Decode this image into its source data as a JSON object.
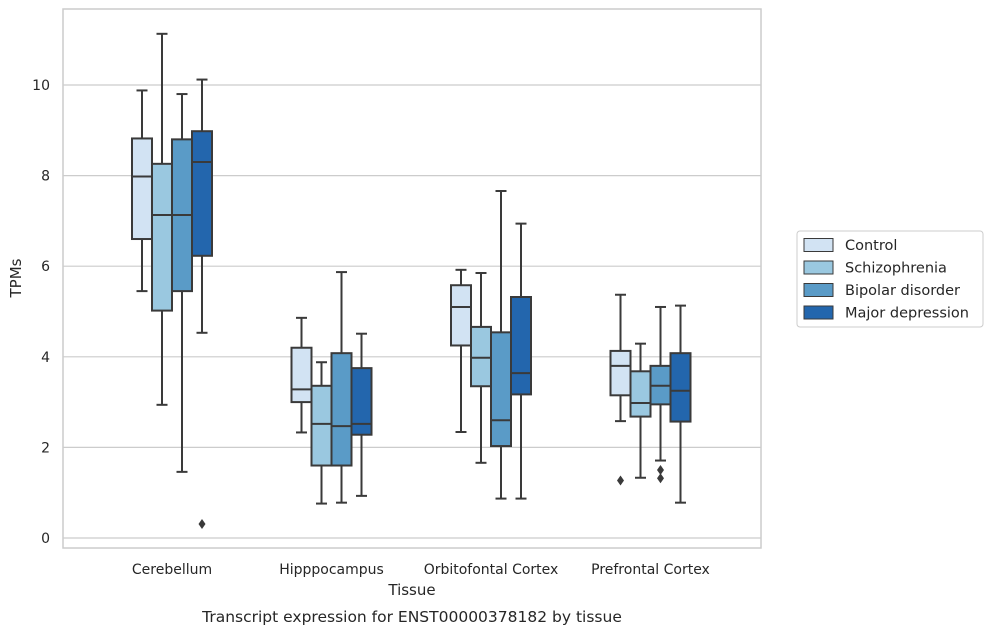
{
  "chart_data": {
    "type": "box",
    "xlabel": "Tissue",
    "ylabel": "TPMs",
    "caption": "Transcript expression for ENST00000378182 by tissue",
    "ylim": [
      -0.2,
      11.6
    ],
    "yticks": [
      0,
      2,
      4,
      6,
      8,
      10
    ],
    "grid": "horizontal",
    "legend_position": "right",
    "categories": [
      "Cerebellum",
      "Hipppocampus",
      "Orbitofontal Cortex",
      "Prefrontal Cortex"
    ],
    "series": [
      {
        "name": "Control",
        "color": "#d2e3f3",
        "boxes": [
          {
            "whislo": 5.45,
            "q1": 6.6,
            "med": 7.98,
            "q3": 8.82,
            "whishi": 9.88,
            "fliers": []
          },
          {
            "whislo": 2.33,
            "q1": 3.0,
            "med": 3.28,
            "q3": 4.2,
            "whishi": 4.86,
            "fliers": []
          },
          {
            "whislo": 2.34,
            "q1": 4.25,
            "med": 5.1,
            "q3": 5.58,
            "whishi": 5.92,
            "fliers": []
          },
          {
            "whislo": 2.58,
            "q1": 3.15,
            "med": 3.8,
            "q3": 4.13,
            "whishi": 5.37,
            "fliers": [
              1.27
            ]
          }
        ]
      },
      {
        "name": "Schizophrenia",
        "color": "#9ac8e0",
        "boxes": [
          {
            "whislo": 2.94,
            "q1": 5.02,
            "med": 7.13,
            "q3": 8.26,
            "whishi": 11.13,
            "fliers": []
          },
          {
            "whislo": 0.76,
            "q1": 1.6,
            "med": 2.52,
            "q3": 3.36,
            "whishi": 3.88,
            "fliers": []
          },
          {
            "whislo": 1.66,
            "q1": 3.35,
            "med": 3.98,
            "q3": 4.66,
            "whishi": 5.85,
            "fliers": []
          },
          {
            "whislo": 1.33,
            "q1": 2.68,
            "med": 2.98,
            "q3": 3.68,
            "whishi": 4.29,
            "fliers": []
          }
        ]
      },
      {
        "name": "Bipolar disorder",
        "color": "#5a9bc7",
        "boxes": [
          {
            "whislo": 1.46,
            "q1": 5.45,
            "med": 7.13,
            "q3": 8.8,
            "whishi": 9.8,
            "fliers": []
          },
          {
            "whislo": 0.78,
            "q1": 1.6,
            "med": 2.47,
            "q3": 4.08,
            "whishi": 5.87,
            "fliers": []
          },
          {
            "whislo": 0.87,
            "q1": 2.03,
            "med": 2.6,
            "q3": 4.54,
            "whishi": 7.66,
            "fliers": []
          },
          {
            "whislo": 1.71,
            "q1": 2.95,
            "med": 3.36,
            "q3": 3.8,
            "whishi": 5.1,
            "fliers": [
              1.5,
              1.32
            ]
          }
        ]
      },
      {
        "name": "Major depression",
        "color": "#2366ad",
        "boxes": [
          {
            "whislo": 4.53,
            "q1": 6.23,
            "med": 8.3,
            "q3": 8.98,
            "whishi": 10.12,
            "fliers": [
              0.31
            ]
          },
          {
            "whislo": 0.93,
            "q1": 2.28,
            "med": 2.52,
            "q3": 3.75,
            "whishi": 4.51,
            "fliers": []
          },
          {
            "whislo": 0.87,
            "q1": 3.17,
            "med": 3.64,
            "q3": 5.32,
            "whishi": 6.94,
            "fliers": []
          },
          {
            "whislo": 0.78,
            "q1": 2.57,
            "med": 3.25,
            "q3": 4.08,
            "whishi": 5.13,
            "fliers": []
          }
        ]
      }
    ]
  }
}
